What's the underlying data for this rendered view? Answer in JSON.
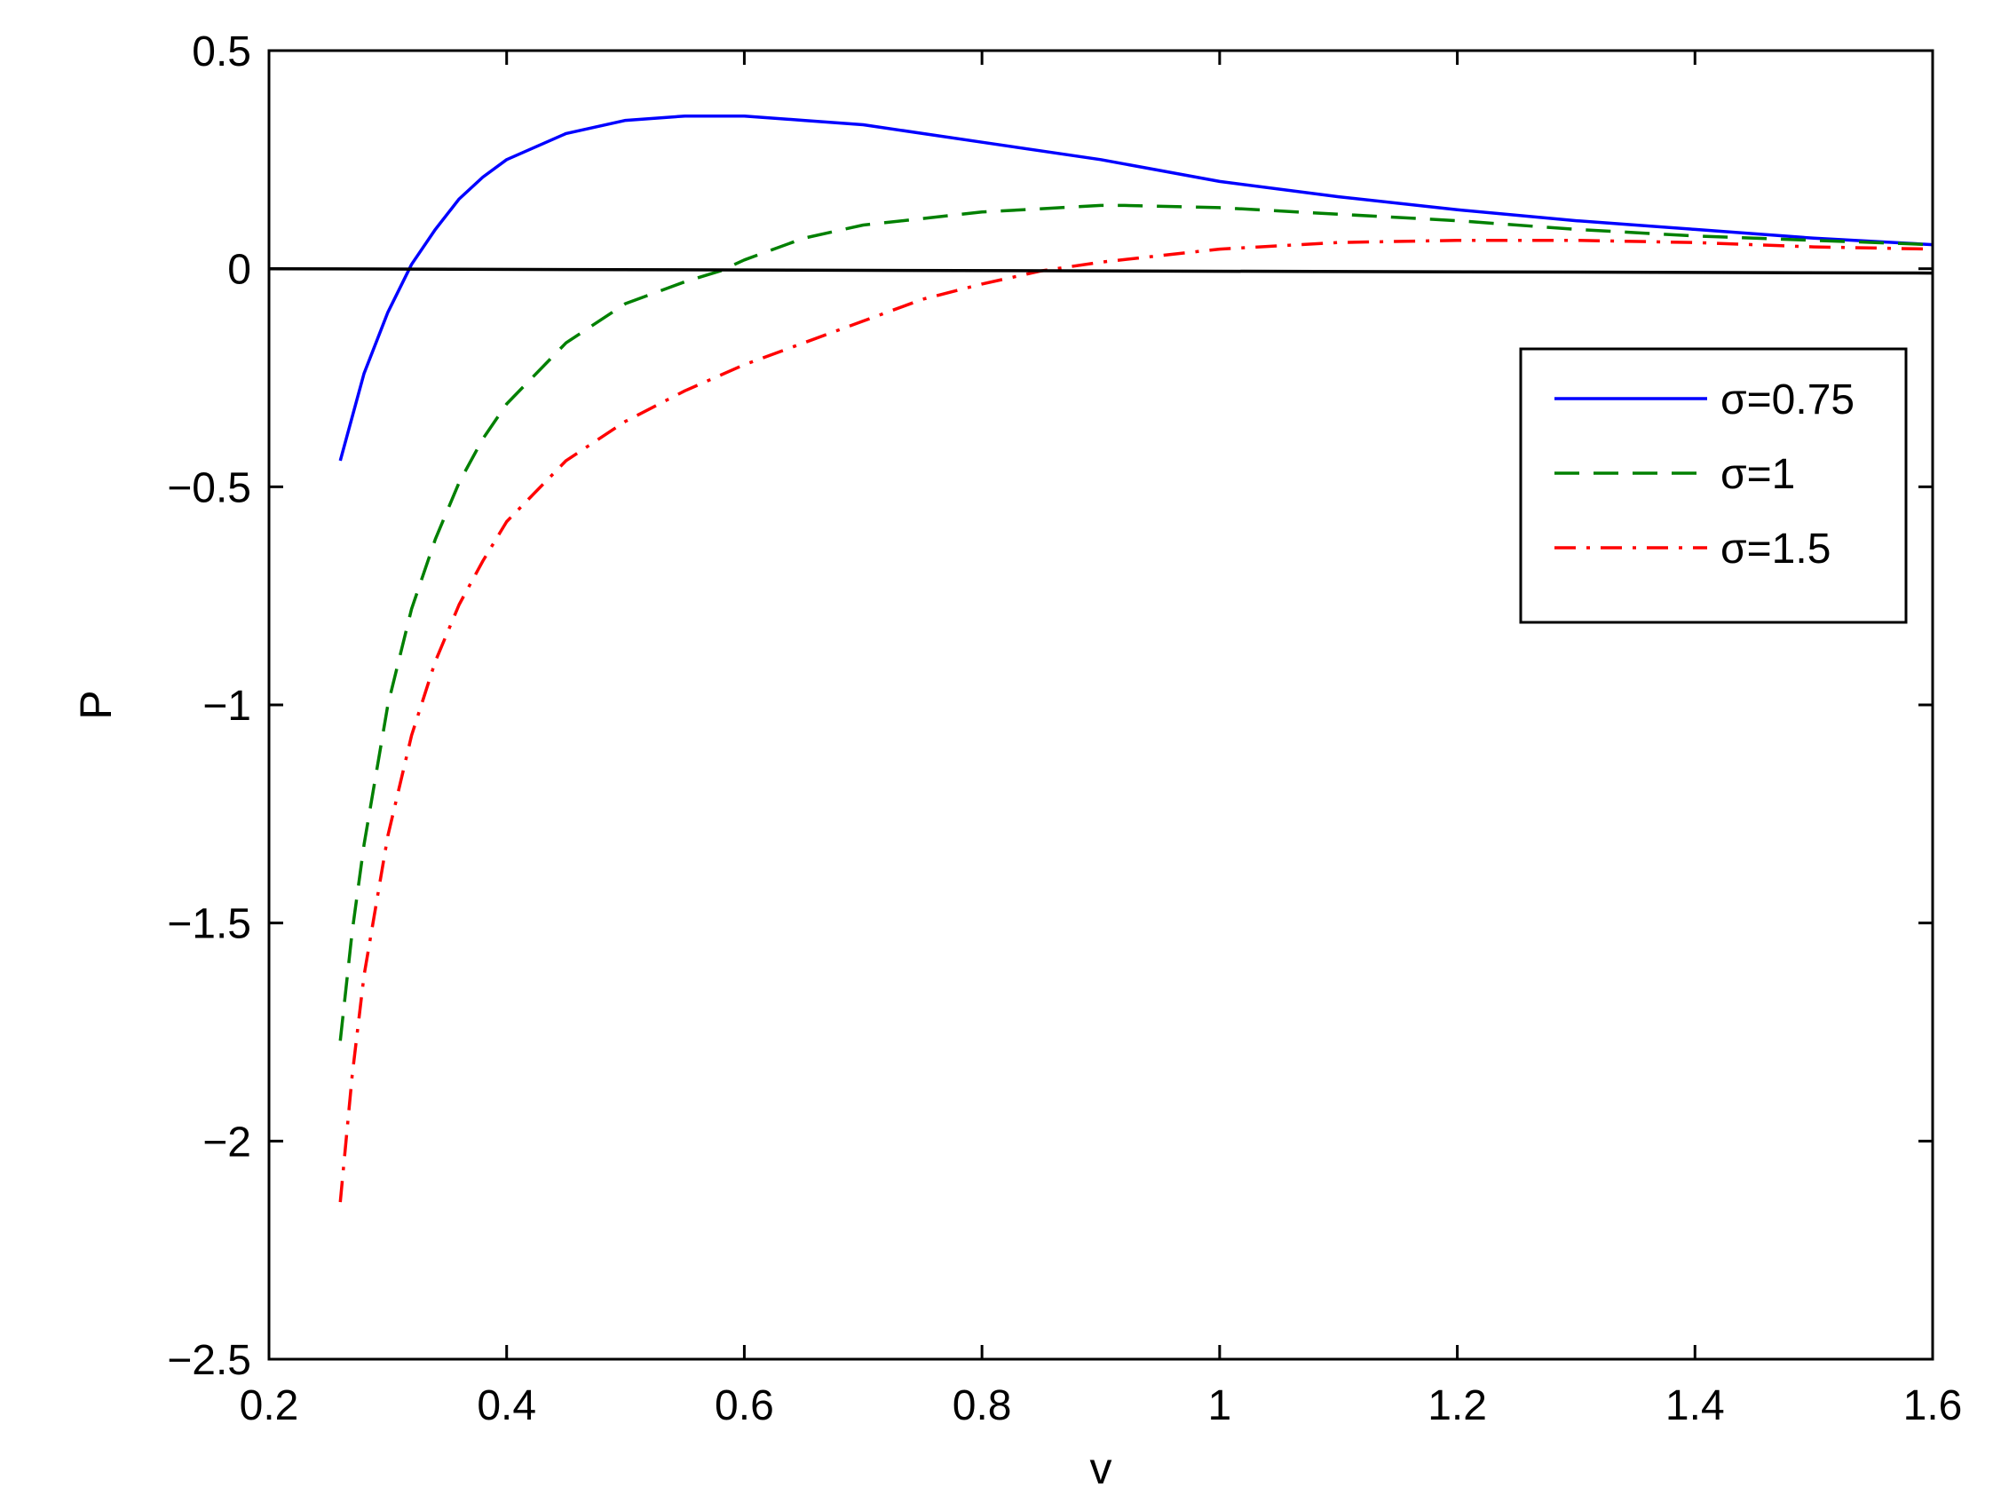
{
  "chart_data": {
    "type": "line",
    "title": "",
    "xlabel": "v",
    "ylabel": "P",
    "xlim": [
      0.2,
      1.6
    ],
    "ylim": [
      -2.5,
      0.5
    ],
    "xticks": [
      0.2,
      0.4,
      0.6,
      0.8,
      1.0,
      1.2,
      1.4,
      1.6
    ],
    "xtick_labels": [
      "0.2",
      "0.4",
      "0.6",
      "0.8",
      "1",
      "1.2",
      "1.4",
      "1.6"
    ],
    "yticks": [
      0.5,
      0.0,
      -0.5,
      -1.0,
      -1.5,
      -2.0,
      -2.5
    ],
    "ytick_labels": [
      "0.5",
      "0",
      "−0.5",
      "−1",
      "−1.5",
      "−2",
      "−2.5"
    ],
    "grid": false,
    "legend_position": "upper-right",
    "series": [
      {
        "name": "σ=0.75",
        "color": "#0000ff",
        "dash": "solid",
        "x": [
          0.26,
          0.28,
          0.3,
          0.32,
          0.34,
          0.36,
          0.38,
          0.4,
          0.45,
          0.5,
          0.55,
          0.57,
          0.6,
          0.65,
          0.7,
          0.8,
          0.9,
          1.0,
          1.1,
          1.2,
          1.3,
          1.4,
          1.5,
          1.6
        ],
        "y": [
          -0.44,
          -0.24,
          -0.1,
          0.01,
          0.09,
          0.16,
          0.21,
          0.25,
          0.31,
          0.34,
          0.35,
          0.35,
          0.35,
          0.34,
          0.33,
          0.29,
          0.25,
          0.2,
          0.165,
          0.135,
          0.11,
          0.09,
          0.07,
          0.055
        ]
      },
      {
        "name": "σ=1",
        "color": "#008000",
        "dash": "dashed",
        "x": [
          0.26,
          0.27,
          0.28,
          0.3,
          0.32,
          0.34,
          0.36,
          0.38,
          0.4,
          0.45,
          0.5,
          0.55,
          0.58,
          0.6,
          0.65,
          0.7,
          0.8,
          0.9,
          0.92,
          1.0,
          1.1,
          1.2,
          1.3,
          1.4,
          1.5,
          1.6
        ],
        "y": [
          -1.77,
          -1.52,
          -1.32,
          -1.0,
          -0.78,
          -0.62,
          -0.49,
          -0.39,
          -0.31,
          -0.17,
          -0.08,
          -0.03,
          -0.005,
          0.02,
          0.07,
          0.1,
          0.13,
          0.145,
          0.145,
          0.14,
          0.125,
          0.11,
          0.09,
          0.075,
          0.065,
          0.055
        ]
      },
      {
        "name": "σ=1.5",
        "color": "#ff0000",
        "dash": "dashdot",
        "x": [
          0.26,
          0.27,
          0.28,
          0.3,
          0.32,
          0.34,
          0.36,
          0.38,
          0.4,
          0.45,
          0.5,
          0.55,
          0.6,
          0.65,
          0.7,
          0.75,
          0.8,
          0.85,
          0.9,
          1.0,
          1.1,
          1.2,
          1.3,
          1.4,
          1.5,
          1.6
        ],
        "y": [
          -2.14,
          -1.85,
          -1.62,
          -1.3,
          -1.07,
          -0.9,
          -0.77,
          -0.67,
          -0.58,
          -0.44,
          -0.35,
          -0.28,
          -0.22,
          -0.17,
          -0.12,
          -0.07,
          -0.035,
          -0.005,
          0.015,
          0.045,
          0.06,
          0.065,
          0.065,
          0.06,
          0.05,
          0.045
        ]
      },
      {
        "name": "",
        "color": "#000000",
        "dash": "solid",
        "x": [
          0.2,
          1.6
        ],
        "y": [
          0.0,
          -0.01
        ]
      }
    ]
  }
}
